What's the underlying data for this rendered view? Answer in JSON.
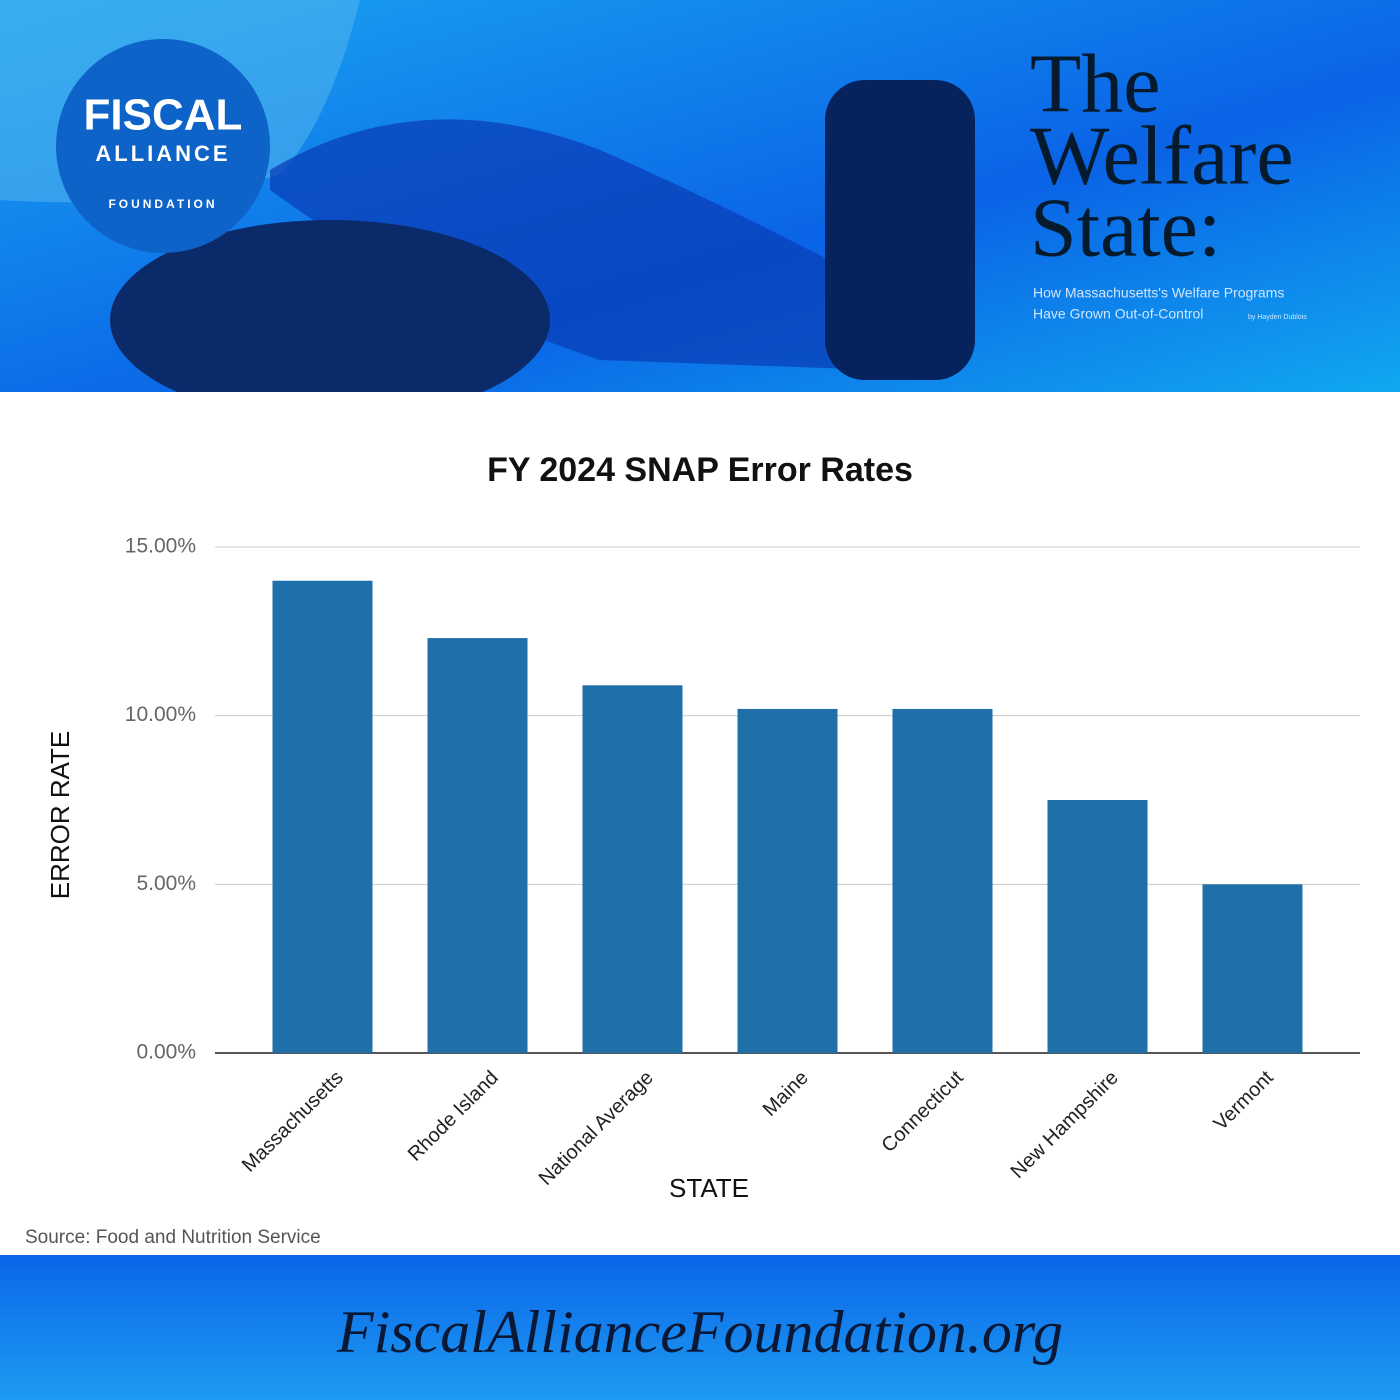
{
  "logo": {
    "line1": "FISCAL",
    "line2": "ALLIANCE",
    "line3": "FOUNDATION"
  },
  "header": {
    "title_lines": [
      "The",
      "Welfare",
      "State:"
    ],
    "subtitle_lines": [
      "How Massachusetts's Welfare Programs",
      "Have Grown Out-of-Control"
    ],
    "byline": "by Hayden Dublois"
  },
  "chart_data": {
    "type": "bar",
    "title": "FY 2024 SNAP Error Rates",
    "categories": [
      "Massachusetts",
      "Rhode Island",
      "National Average",
      "Maine",
      "Connecticut",
      "New Hampshire",
      "Vermont"
    ],
    "values": [
      14.0,
      12.3,
      10.9,
      10.2,
      10.2,
      7.5,
      5.0
    ],
    "color": "#1f6fa8",
    "ylim": [
      0,
      15
    ],
    "yticks": [
      {
        "value": 0,
        "label": "0.00%"
      },
      {
        "value": 5,
        "label": "5.00%"
      },
      {
        "value": 10,
        "label": "10.00%"
      },
      {
        "value": 15,
        "label": "15.00%"
      }
    ],
    "grid": true,
    "y_label": "ERROR RATE",
    "x_label": "STATE"
  },
  "source": "Source: Food and Nutrition Service",
  "website": "FiscalAllianceFoundation.org"
}
